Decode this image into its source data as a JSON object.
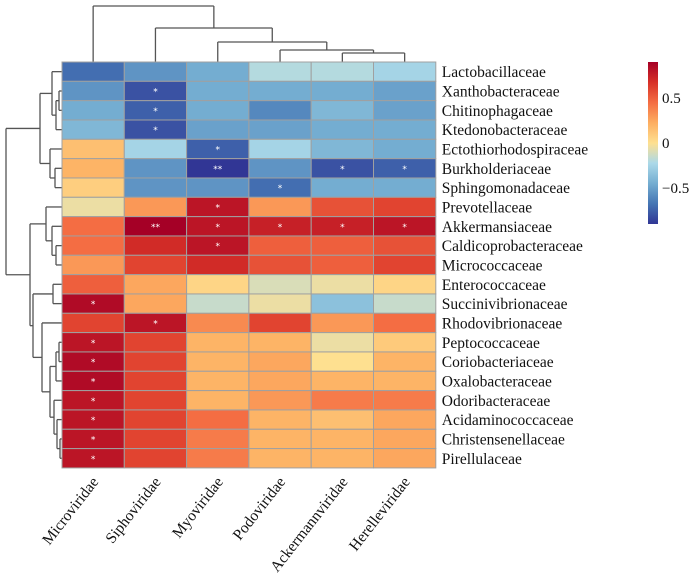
{
  "chart_data": {
    "type": "heatmap",
    "title": "",
    "columns": [
      "Microviridae",
      "Siphoviridae",
      "Myoviridae",
      "Podoviridae",
      "Ackermannviridae",
      "Herelleviridae"
    ],
    "rows": [
      "Lactobacillaceae",
      "Xanthobacteraceae",
      "Chitinophagaceae",
      "Ktedonobacteraceae",
      "Ectothiorhodospiraceae",
      "Burkholderiaceae",
      "Sphingomonadaceae",
      "Prevotellaceae",
      "Akkermansiaceae",
      "Caldicoprobacteraceae",
      "Micrococcaceae",
      "Enterococcaceae",
      "Succinivibrionaceae",
      "Rhodovibrionaceae",
      "Peptococcaceae",
      "Coriobacteriaceae",
      "Oxalobacteraceae",
      "Odoribacteraceae",
      "Acidaminococcaceae",
      "Christensenellaceae",
      "Pirellulaceae"
    ],
    "values": [
      [
        -0.7,
        -0.55,
        -0.45,
        -0.2,
        -0.2,
        -0.25
      ],
      [
        -0.55,
        -0.8,
        -0.45,
        -0.45,
        -0.45,
        -0.5
      ],
      [
        -0.45,
        -0.75,
        -0.45,
        -0.6,
        -0.4,
        -0.5
      ],
      [
        -0.4,
        -0.8,
        -0.5,
        -0.5,
        -0.45,
        -0.45
      ],
      [
        0.15,
        -0.25,
        -0.75,
        -0.25,
        -0.4,
        -0.45
      ],
      [
        0.2,
        -0.55,
        -0.9,
        -0.55,
        -0.8,
        -0.75
      ],
      [
        0.08,
        -0.55,
        -0.55,
        -0.7,
        -0.45,
        -0.45
      ],
      [
        -0.05,
        0.3,
        0.8,
        0.3,
        0.55,
        0.6
      ],
      [
        0.45,
        0.9,
        0.8,
        0.75,
        0.75,
        0.8
      ],
      [
        0.45,
        0.7,
        0.8,
        0.5,
        0.5,
        0.55
      ],
      [
        0.3,
        0.6,
        0.7,
        0.55,
        0.5,
        0.6
      ],
      [
        0.5,
        0.25,
        0.05,
        -0.1,
        -0.05,
        0.05
      ],
      [
        0.85,
        0.25,
        -0.15,
        -0.05,
        -0.35,
        -0.15
      ],
      [
        0.6,
        0.8,
        0.35,
        0.6,
        0.3,
        0.45
      ],
      [
        0.8,
        0.6,
        0.2,
        0.2,
        -0.05,
        0.1
      ],
      [
        0.85,
        0.6,
        0.2,
        0.25,
        0.0,
        0.2
      ],
      [
        0.85,
        0.6,
        0.2,
        0.25,
        0.2,
        0.2
      ],
      [
        0.8,
        0.6,
        0.2,
        0.3,
        0.4,
        0.4
      ],
      [
        0.8,
        0.6,
        0.45,
        0.2,
        0.15,
        0.25
      ],
      [
        0.8,
        0.6,
        0.4,
        0.2,
        0.2,
        0.25
      ],
      [
        0.8,
        0.6,
        0.4,
        0.2,
        0.2,
        0.25
      ]
    ],
    "significance": [
      [
        "",
        "",
        "",
        "",
        "",
        ""
      ],
      [
        "",
        "*",
        "",
        "",
        "",
        ""
      ],
      [
        "",
        "*",
        "",
        "",
        "",
        ""
      ],
      [
        "",
        "*",
        "",
        "",
        "",
        ""
      ],
      [
        "",
        "",
        "*",
        "",
        "",
        ""
      ],
      [
        "",
        "",
        "**",
        "",
        "*",
        "*"
      ],
      [
        "",
        "",
        "",
        "*",
        "",
        ""
      ],
      [
        "",
        "",
        "*",
        "",
        "",
        ""
      ],
      [
        "",
        "**",
        "*",
        "*",
        "*",
        "*"
      ],
      [
        "",
        "",
        "*",
        "",
        "",
        ""
      ],
      [
        "",
        "",
        "",
        "",
        "",
        ""
      ],
      [
        "",
        "",
        "",
        "",
        "",
        ""
      ],
      [
        "*",
        "",
        "",
        "",
        "",
        ""
      ],
      [
        "",
        "*",
        "",
        "",
        "",
        ""
      ],
      [
        "*",
        "",
        "",
        "",
        "",
        ""
      ],
      [
        "*",
        "",
        "",
        "",
        "",
        ""
      ],
      [
        "*",
        "",
        "",
        "",
        "",
        ""
      ],
      [
        "*",
        "",
        "",
        "",
        "",
        ""
      ],
      [
        "*",
        "",
        "",
        "",
        "",
        ""
      ],
      [
        "*",
        "",
        "",
        "",
        "",
        ""
      ],
      [
        "*",
        "",
        "",
        "",
        "",
        ""
      ]
    ],
    "colorbar": {
      "range": [
        -0.9,
        0.9
      ],
      "ticks": [
        0.5,
        0,
        -0.5
      ],
      "tick_labels": [
        "0.5",
        "0",
        "−0.5"
      ],
      "colormap": [
        "#313695",
        "#4575b4",
        "#74add1",
        "#abd9e9",
        "#fee090",
        "#fdae61",
        "#f46d43",
        "#d73027",
        "#a50026"
      ]
    },
    "dendrograms": {
      "rows": true,
      "columns": true
    },
    "cell_border_color": "#a0a0a0"
  }
}
